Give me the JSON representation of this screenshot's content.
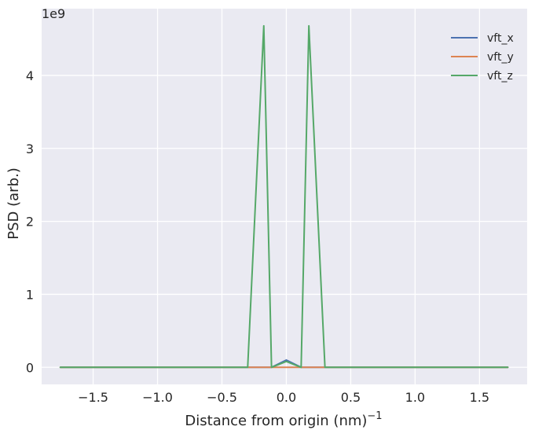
{
  "chart_data": {
    "type": "line",
    "title": "",
    "xlabel": "Distance from origin (nm)",
    "xlabel_superscript": "−1",
    "ylabel": "PSD (arb.)",
    "y_offset_label": "1e9",
    "y_scale_factor": 1000000000,
    "xlim": [
      -1.9,
      1.87
    ],
    "ylim": [
      -0.234,
      4.915
    ],
    "x_ticks": [
      -1.5,
      -1.0,
      -0.5,
      0.0,
      0.5,
      1.0,
      1.5
    ],
    "x_tick_labels": [
      "−1.5",
      "−1.0",
      "−0.5",
      "0.0",
      "0.5",
      "1.0",
      "1.5"
    ],
    "y_ticks": [
      0,
      1,
      2,
      3,
      4
    ],
    "y_tick_labels": [
      "0",
      "1",
      "2",
      "3",
      "4"
    ],
    "grid": true,
    "legend_position": "top-right",
    "background": "#eaeaf2",
    "series": [
      {
        "name": "vft_x",
        "color": "#4c72b0",
        "x": [
          -1.755,
          -0.3,
          -0.175,
          -0.115,
          0.0,
          0.115,
          0.175,
          0.3,
          1.72
        ],
        "y": [
          0,
          0,
          0,
          0,
          0.1,
          0,
          0,
          0,
          0
        ]
      },
      {
        "name": "vft_y",
        "color": "#dd8452",
        "x": [
          -1.755,
          -0.3,
          -0.175,
          -0.115,
          0.0,
          0.115,
          0.175,
          0.3,
          1.72
        ],
        "y": [
          0,
          0,
          0,
          0,
          0,
          0,
          0,
          0,
          0
        ]
      },
      {
        "name": "vft_z",
        "color": "#55a868",
        "x": [
          -1.755,
          -0.3,
          -0.175,
          -0.115,
          0.0,
          0.115,
          0.175,
          0.3,
          1.72
        ],
        "y": [
          0,
          0,
          4.68,
          0,
          0.08,
          0,
          4.68,
          0,
          0
        ]
      }
    ]
  }
}
